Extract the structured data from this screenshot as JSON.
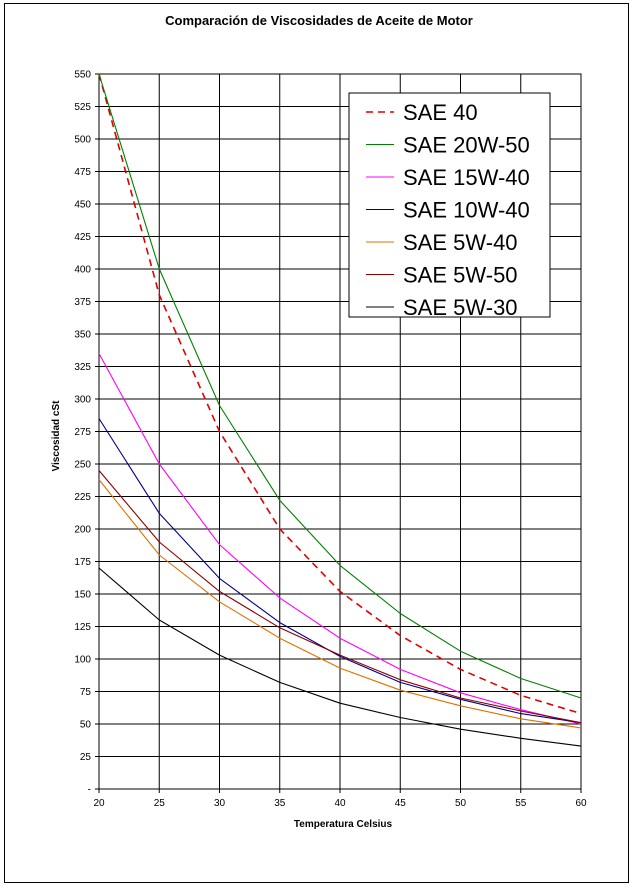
{
  "chart_data": {
    "type": "line",
    "title": "Comparación de Viscosidades de Aceite de Motor",
    "xlabel": "Temperatura Celsius",
    "ylabel": "Viscosidad cSt",
    "xlim": [
      20,
      60
    ],
    "ylim": [
      0,
      550
    ],
    "x_ticks": [
      "20",
      "25",
      "30",
      "35",
      "40",
      "45",
      "50",
      "55",
      "60"
    ],
    "y_ticks": [
      "-",
      "25",
      "50",
      "75",
      "100",
      "125",
      "150",
      "175",
      "200",
      "225",
      "250",
      "275",
      "300",
      "325",
      "350",
      "375",
      "400",
      "425",
      "450",
      "475",
      "500",
      "525",
      "550"
    ],
    "grid": true,
    "legend_position": "top-right",
    "x": [
      20,
      25,
      30,
      35,
      40,
      45,
      50,
      55,
      60
    ],
    "series": [
      {
        "name": "SAE 40",
        "color": "#e00000",
        "dash": true,
        "values": [
          550,
          380,
          275,
          200,
          152,
          118,
          92,
          72,
          58
        ]
      },
      {
        "name": "SAE 20W-50",
        "color": "#008000",
        "dash": false,
        "values": [
          550,
          400,
          295,
          222,
          172,
          135,
          106,
          85,
          70
        ]
      },
      {
        "name": "SAE 15W-40",
        "color": "#ff00ff",
        "dash": false,
        "values": [
          335,
          250,
          188,
          147,
          116,
          92,
          74,
          61,
          50
        ]
      },
      {
        "name": "SAE 10W-40",
        "color": "#00008b",
        "dash": false,
        "values": [
          285,
          212,
          162,
          128,
          102,
          82,
          69,
          58,
          51
        ]
      },
      {
        "name": "SAE 5W-40",
        "color": "#e07000",
        "dash": false,
        "values": [
          238,
          180,
          144,
          116,
          93,
          76,
          64,
          54,
          47
        ]
      },
      {
        "name": "SAE 5W-50",
        "color": "#8b0000",
        "dash": false,
        "values": [
          245,
          190,
          152,
          124,
          103,
          84,
          70,
          60,
          51
        ]
      },
      {
        "name": "SAE 5W-30",
        "color": "#000000",
        "dash": false,
        "values": [
          170,
          130,
          103,
          82,
          66,
          55,
          46,
          39,
          33
        ]
      }
    ]
  }
}
